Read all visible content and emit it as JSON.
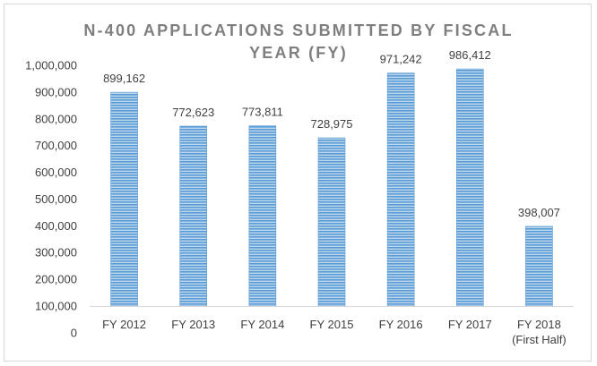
{
  "chart_data": {
    "type": "bar",
    "title_lines": [
      "N-400 APPLICATIONS SUBMITTED BY FISCAL",
      "YEAR (FY)"
    ],
    "categories": [
      [
        "FY 2012"
      ],
      [
        "FY 2013"
      ],
      [
        "FY 2014"
      ],
      [
        "FY 2015"
      ],
      [
        "FY 2016"
      ],
      [
        "FY 2017"
      ],
      [
        "FY 2018",
        "(First Half)"
      ]
    ],
    "values": [
      899162,
      772623,
      773811,
      728975,
      971242,
      986412,
      398007
    ],
    "value_labels": [
      "899,162",
      "772,623",
      "773,811",
      "728,975",
      "971,242",
      "986,412",
      "398,007"
    ],
    "y_ticks": [
      "0",
      "100,000",
      "200,000",
      "300,000",
      "400,000",
      "500,000",
      "600,000",
      "700,000",
      "800,000",
      "900,000",
      "1,000,000"
    ],
    "ylim": [
      100000,
      1000000
    ],
    "grid": false,
    "legend": "none",
    "bar_color": "#5b9bd5",
    "bar_pattern": "horizontal-stripes"
  }
}
